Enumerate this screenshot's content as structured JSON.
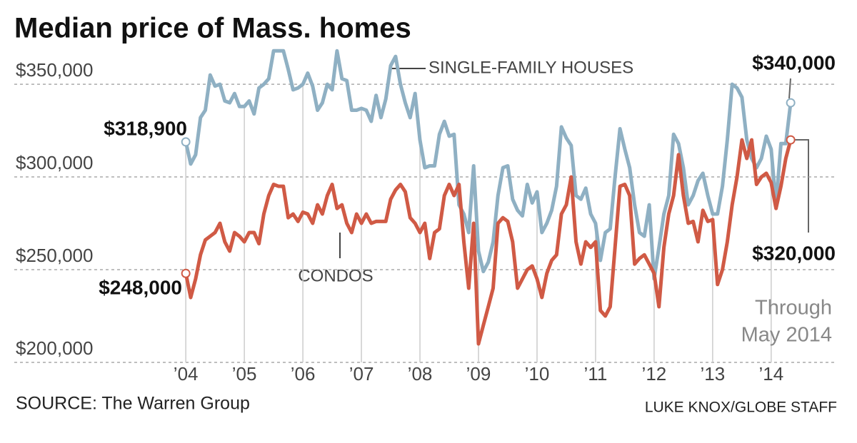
{
  "chart_data": {
    "type": "line",
    "title": "Median price of Mass. homes",
    "x": [
      2004,
      2004.083,
      2004.167,
      2004.25,
      2004.333,
      2004.417,
      2004.5,
      2004.583,
      2004.667,
      2004.75,
      2004.833,
      2004.917,
      2005,
      2005.083,
      2005.167,
      2005.25,
      2005.333,
      2005.417,
      2005.5,
      2005.583,
      2005.667,
      2005.75,
      2005.833,
      2005.917,
      2006,
      2006.083,
      2006.167,
      2006.25,
      2006.333,
      2006.417,
      2006.5,
      2006.583,
      2006.667,
      2006.75,
      2006.833,
      2006.917,
      2007,
      2007.083,
      2007.167,
      2007.25,
      2007.333,
      2007.417,
      2007.5,
      2007.583,
      2007.667,
      2007.75,
      2007.833,
      2007.917,
      2008,
      2008.083,
      2008.167,
      2008.25,
      2008.333,
      2008.417,
      2008.5,
      2008.583,
      2008.667,
      2008.75,
      2008.833,
      2008.917,
      2009,
      2009.083,
      2009.167,
      2009.25,
      2009.333,
      2009.417,
      2009.5,
      2009.583,
      2009.667,
      2009.75,
      2009.833,
      2009.917,
      2010,
      2010.083,
      2010.167,
      2010.25,
      2010.333,
      2010.417,
      2010.5,
      2010.583,
      2010.667,
      2010.75,
      2010.833,
      2010.917,
      2011,
      2011.083,
      2011.167,
      2011.25,
      2011.333,
      2011.417,
      2011.5,
      2011.583,
      2011.667,
      2011.75,
      2011.833,
      2011.917,
      2012,
      2012.083,
      2012.167,
      2012.25,
      2012.333,
      2012.417,
      2012.5,
      2012.583,
      2012.667,
      2012.75,
      2012.833,
      2012.917,
      2013,
      2013.083,
      2013.167,
      2013.25,
      2013.333,
      2013.417,
      2013.5,
      2013.583,
      2013.667,
      2013.75,
      2013.833,
      2013.917,
      2014,
      2014.083,
      2014.167,
      2014.25,
      2014.333
    ],
    "series": [
      {
        "name": "SINGLE-FAMILY HOUSES",
        "color": "#8fb0c3",
        "values": [
          318900,
          307000,
          312000,
          332000,
          336000,
          355000,
          349000,
          350000,
          341000,
          340000,
          345000,
          338000,
          338000,
          341000,
          334000,
          348000,
          350000,
          353000,
          368000,
          368000,
          368000,
          358000,
          347000,
          348000,
          350000,
          356000,
          349000,
          336000,
          340000,
          350000,
          347000,
          368000,
          353000,
          352000,
          336000,
          336000,
          337000,
          336000,
          330000,
          344000,
          332000,
          342000,
          360000,
          365000,
          350000,
          340000,
          332000,
          345000,
          320000,
          305000,
          306000,
          306000,
          323000,
          330000,
          322000,
          323000,
          285000,
          280000,
          270000,
          306000,
          260000,
          249000,
          254000,
          265000,
          290000,
          305000,
          306000,
          288000,
          282000,
          279000,
          296000,
          286000,
          292000,
          270000,
          275000,
          282000,
          295000,
          327000,
          321000,
          317000,
          290000,
          288000,
          294000,
          280000,
          275000,
          255000,
          270000,
          272000,
          300000,
          326000,
          315000,
          305000,
          285000,
          270000,
          268000,
          285000,
          245000,
          262000,
          280000,
          290000,
          323000,
          318000,
          305000,
          285000,
          290000,
          298000,
          302000,
          290000,
          280000,
          280000,
          295000,
          320000,
          350000,
          348000,
          343000,
          320000,
          310000,
          305000,
          310000,
          322000,
          315000,
          285000,
          318000,
          318000,
          340000
        ]
      },
      {
        "name": "CONDOS",
        "color": "#d05a45",
        "values": [
          248000,
          235000,
          245000,
          258000,
          266000,
          268000,
          270000,
          275000,
          265000,
          260000,
          270000,
          268000,
          265000,
          270000,
          270000,
          264000,
          280000,
          290000,
          296000,
          295000,
          295000,
          278000,
          280000,
          276000,
          281000,
          280000,
          275000,
          285000,
          280000,
          290000,
          296000,
          283000,
          285000,
          275000,
          270000,
          280000,
          275000,
          280000,
          275000,
          276000,
          276000,
          276000,
          288000,
          293000,
          296000,
          292000,
          278000,
          275000,
          270000,
          275000,
          256000,
          270000,
          272000,
          290000,
          296000,
          290000,
          296000,
          265000,
          240000,
          275000,
          210000,
          220000,
          230000,
          240000,
          275000,
          278000,
          276000,
          265000,
          240000,
          245000,
          250000,
          252000,
          245000,
          235000,
          248000,
          255000,
          258000,
          280000,
          285000,
          300000,
          265000,
          253000,
          265000,
          262000,
          265000,
          228000,
          225000,
          230000,
          262000,
          295000,
          296000,
          290000,
          253000,
          256000,
          258000,
          253000,
          248000,
          230000,
          262000,
          280000,
          290000,
          312000,
          290000,
          275000,
          276000,
          265000,
          282000,
          276000,
          277000,
          242000,
          250000,
          265000,
          285000,
          300000,
          320000,
          310000,
          320000,
          296000,
          300000,
          302000,
          297000,
          283000,
          295000,
          310000,
          320000
        ]
      }
    ],
    "xlim": [
      2001.07,
      2015.1
    ],
    "xticks": [
      {
        "value": 2004,
        "label": "’04"
      },
      {
        "value": 2005,
        "label": "’05"
      },
      {
        "value": 2006,
        "label": "’06"
      },
      {
        "value": 2007,
        "label": "’07"
      },
      {
        "value": 2008,
        "label": "’08"
      },
      {
        "value": 2009,
        "label": "’09"
      },
      {
        "value": 2010,
        "label": "’10"
      },
      {
        "value": 2011,
        "label": "’11"
      },
      {
        "value": 2012,
        "label": "’12"
      },
      {
        "value": 2013,
        "label": "’13"
      },
      {
        "value": 2014,
        "label": "’14"
      }
    ],
    "ylim": [
      200000,
      368500
    ],
    "yticks": [
      {
        "value": 200000,
        "label": "$200,000"
      },
      {
        "value": 250000,
        "label": "$250,000"
      },
      {
        "value": 300000,
        "label": "$300,000"
      },
      {
        "value": 350000,
        "label": "$350,000"
      }
    ],
    "grid": true,
    "annotations": [
      "$318,900",
      "$248,000",
      "$340,000",
      "$320,000",
      "Through",
      "May 2014"
    ],
    "source": "SOURCE: The Warren Group",
    "credit": "LUKE KNOX/GLOBE STAFF"
  }
}
